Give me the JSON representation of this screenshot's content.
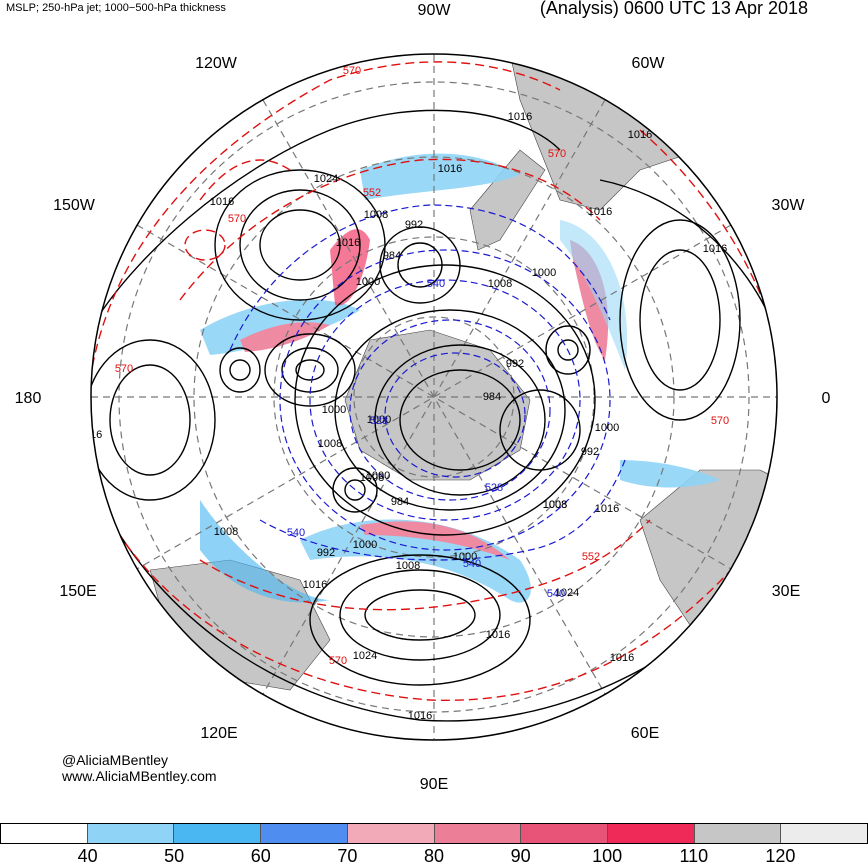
{
  "header": {
    "left_title": "MSLP; 250-hPa jet; 1000−500-hPa thickness",
    "right_title": "(Analysis) 0600 UTC 13 Apr 2018"
  },
  "credit": {
    "handle": "@AliciaMBentley",
    "site": "www.AliciaMBentley.com"
  },
  "longitude_labels": [
    "90W",
    "60W",
    "30W",
    "0",
    "30E",
    "60E",
    "90E",
    "120E",
    "150E",
    "180",
    "150W",
    "120W"
  ],
  "colorbar": {
    "ticks": [
      "40",
      "50",
      "60",
      "70",
      "80",
      "90",
      "100",
      "110",
      "120"
    ],
    "colors": [
      "#ffffff",
      "#8fd4f7",
      "#4bb7f2",
      "#4f8ef0",
      "#f2aab9",
      "#ec7e98",
      "#e85478",
      "#ef2a58",
      "#c6c6c6",
      "#ececec"
    ]
  },
  "isobar_labels": [
    {
      "text": "1016"
    },
    {
      "text": "1024"
    },
    {
      "text": "1016"
    },
    {
      "text": "1008"
    },
    {
      "text": "1016"
    },
    {
      "text": "992"
    },
    {
      "text": "984"
    },
    {
      "text": "1000"
    },
    {
      "text": "1016"
    },
    {
      "text": "1016"
    },
    {
      "text": "1016"
    },
    {
      "text": "1016"
    },
    {
      "text": "1000"
    },
    {
      "text": "1008"
    },
    {
      "text": "992"
    },
    {
      "text": "984"
    },
    {
      "text": "1000"
    },
    {
      "text": "1000"
    },
    {
      "text": "1008"
    },
    {
      "text": "1008"
    },
    {
      "text": "1000"
    },
    {
      "text": "992"
    },
    {
      "text": "1008"
    },
    {
      "text": "1016"
    },
    {
      "text": "1016"
    },
    {
      "text": "1008"
    },
    {
      "text": "992"
    },
    {
      "text": "1000"
    },
    {
      "text": "1008"
    },
    {
      "text": "1016"
    },
    {
      "text": "1000"
    },
    {
      "text": "1024"
    },
    {
      "text": "1016"
    },
    {
      "text": "1024"
    },
    {
      "text": "1016"
    },
    {
      "text": "1016"
    },
    {
      "text": "1000"
    },
    {
      "text": "1008"
    },
    {
      "text": "984"
    },
    {
      "text": "1016"
    }
  ],
  "thickness_labels": [
    {
      "text": "570"
    },
    {
      "text": "570"
    },
    {
      "text": "552"
    },
    {
      "text": "570"
    },
    {
      "text": "570"
    },
    {
      "text": "570"
    },
    {
      "text": "552"
    },
    {
      "text": "570"
    },
    {
      "text": "540"
    },
    {
      "text": "540"
    },
    {
      "text": "540"
    },
    {
      "text": "540"
    },
    {
      "text": "528"
    },
    {
      "text": "528"
    }
  ]
}
